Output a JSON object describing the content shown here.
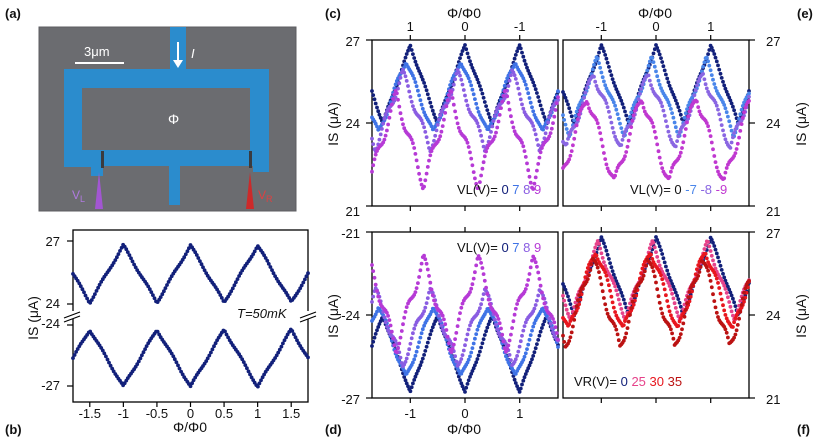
{
  "panel_labels": {
    "a": "(a)",
    "b": "(b)",
    "c": "(c)",
    "d": "(d)",
    "e": "(e)",
    "f": "(f)"
  },
  "sem_image": {
    "scale_bar": "3μm",
    "current_label": "I",
    "flux_label": "Φ",
    "v_left": "V",
    "v_left_sub": "L",
    "v_right": "V",
    "v_right_sub": "R",
    "colors": {
      "background": "#6b6c70",
      "device": "#2b8ccd",
      "v_left": "#a256d2",
      "v_right": "#cc2a2a"
    }
  },
  "series_colors": {
    "V0": "#12207a",
    "V7": "#3f73e6",
    "V8": "#8a5de2",
    "V9": "#b63ad6",
    "Vm7": "#4a86ea",
    "Vm8": "#8a66e2",
    "Vm9": "#c038d0",
    "R25": "#e6428a",
    "R30": "#e8161e",
    "R35": "#bb1212"
  },
  "chart_data": [
    {
      "id": "b",
      "type": "scatter",
      "title": "",
      "xlabel": "Φ/Φ0",
      "ylabel": "IS (μA)",
      "annotation": "T=50mK",
      "xlim": [
        -1.75,
        1.75
      ],
      "xticks": [
        "-1.5",
        "-1",
        "-0.5",
        "0",
        "0.5",
        "1",
        "1.5"
      ],
      "xtick_values": [
        -1.5,
        -1,
        -0.5,
        0,
        0.5,
        1,
        1.5
      ],
      "yticks_upper": [
        "27",
        "24"
      ],
      "yticks_lower": [
        "-24",
        "-27"
      ],
      "series": [
        {
          "name": "+IS",
          "branch": "upper",
          "color": "#12207a",
          "period": 1.0,
          "peak_phase": 0.0,
          "max": 27,
          "min": 24,
          "ylim": [
            23.6,
            27.6
          ]
        },
        {
          "name": "-IS",
          "branch": "lower",
          "color": "#12207a",
          "period": 1.0,
          "peak_phase": 0.0,
          "max": -24,
          "min": -27,
          "ylim": [
            -27.6,
            -23.6
          ]
        }
      ]
    },
    {
      "id": "c",
      "type": "scatter",
      "xlabel": "Φ/Φ0",
      "xlabel_position": "top",
      "ylabel": "IS (μA)",
      "xlim": [
        -1.7,
        1.7
      ],
      "x_reversed": true,
      "xticks": [
        "1",
        "0",
        "-1"
      ],
      "xtick_values": [
        1,
        0,
        -1
      ],
      "ylim": [
        21,
        27
      ],
      "yticks": [
        "27",
        "24",
        "21"
      ],
      "legend_label": "VL(V)=",
      "legend_values": [
        "0",
        "7",
        "8",
        "9"
      ],
      "series": [
        {
          "name": "VL=0",
          "color": "#12207a",
          "period": 1.0,
          "peak_phase": 0.0,
          "max": 26.8,
          "min": 24.0
        },
        {
          "name": "VL=7",
          "color": "#3f73e6",
          "period": 1.0,
          "peak_phase": 0.08,
          "max": 26.3,
          "min": 23.6
        },
        {
          "name": "VL=8",
          "color": "#8a5de2",
          "period": 1.0,
          "peak_phase": 0.14,
          "max": 25.8,
          "min": 23.1
        },
        {
          "name": "VL=9",
          "color": "#b63ad6",
          "period": 1.0,
          "peak_phase": 0.26,
          "max": 25.0,
          "min": 21.8
        }
      ]
    },
    {
      "id": "e",
      "type": "scatter",
      "xlim": [
        -1.7,
        1.7
      ],
      "xticks": [
        "-1",
        "0",
        "1"
      ],
      "xtick_values": [
        -1,
        0,
        1
      ],
      "ylabel": "IS (μA)",
      "ylim": [
        21,
        27
      ],
      "yticks": [
        "27",
        "24",
        "21"
      ],
      "legend_label": "VL(V)= 0",
      "legend_values": [
        "-7",
        "-8",
        "-9"
      ],
      "series": [
        {
          "name": "VL=0",
          "color": "#12207a",
          "period": 1.0,
          "peak_phase": 0.0,
          "max": 26.8,
          "min": 24.0
        },
        {
          "name": "VL=-7",
          "color": "#4a86ea",
          "period": 1.0,
          "peak_phase": -0.08,
          "max": 26.3,
          "min": 23.6
        },
        {
          "name": "VL=-8",
          "color": "#8a66e2",
          "period": 1.0,
          "peak_phase": -0.14,
          "max": 25.8,
          "min": 23.1
        },
        {
          "name": "VL=-9",
          "color": "#c038d0",
          "period": 1.0,
          "peak_phase": -0.26,
          "max": 25.0,
          "min": 21.8
        }
      ]
    },
    {
      "id": "d",
      "type": "scatter",
      "xlabel": "Φ/Φ0",
      "xlim": [
        -1.7,
        1.7
      ],
      "xticks": [
        "-1",
        "0",
        "1"
      ],
      "xtick_values": [
        -1,
        0,
        1
      ],
      "ylabel": "IS (μA)",
      "ylim": [
        -27,
        -21
      ],
      "yticks": [
        "-21",
        "-24",
        "-27"
      ],
      "legend_label": "VL(V)=",
      "legend_values": [
        "0",
        "7",
        "8",
        "9"
      ],
      "series": [
        {
          "name": "VL=0",
          "color": "#12207a",
          "period": 1.0,
          "peak_phase": 0.0,
          "max": -24.0,
          "min": -26.8,
          "inverted": true
        },
        {
          "name": "VL=7",
          "color": "#3f73e6",
          "period": 1.0,
          "peak_phase": -0.08,
          "max": -23.6,
          "min": -26.3,
          "inverted": true
        },
        {
          "name": "VL=8",
          "color": "#8a5de2",
          "period": 1.0,
          "peak_phase": -0.14,
          "max": -23.1,
          "min": -25.8,
          "inverted": true
        },
        {
          "name": "VL=9",
          "color": "#b63ad6",
          "period": 1.0,
          "peak_phase": -0.26,
          "max": -22.0,
          "min": -25.2,
          "inverted": true
        }
      ]
    },
    {
      "id": "f",
      "type": "scatter",
      "xlim": [
        -1.7,
        1.7
      ],
      "xticks": [
        "-1",
        "0",
        "1"
      ],
      "xtick_values": [
        -1,
        0,
        1
      ],
      "ylabel": "IS (μA)",
      "ylim": [
        21,
        27
      ],
      "yticks": [
        "27",
        "24",
        "21"
      ],
      "legend_label": "VR(V)=",
      "legend_values": [
        "0",
        "25",
        "30",
        "35"
      ],
      "series": [
        {
          "name": "VR=0",
          "color": "#12207a",
          "period": 1.0,
          "peak_phase": 0.0,
          "max": 26.8,
          "min": 24.0
        },
        {
          "name": "VR=25",
          "color": "#e6428a",
          "period": 1.0,
          "peak_phase": -0.06,
          "max": 26.6,
          "min": 23.9
        },
        {
          "name": "VR=30",
          "color": "#e8161e",
          "period": 1.0,
          "peak_phase": -0.1,
          "max": 26.4,
          "min": 23.4
        },
        {
          "name": "VR=35",
          "color": "#bb1212",
          "period": 1.0,
          "peak_phase": -0.16,
          "max": 26.1,
          "min": 22.8
        }
      ]
    }
  ]
}
